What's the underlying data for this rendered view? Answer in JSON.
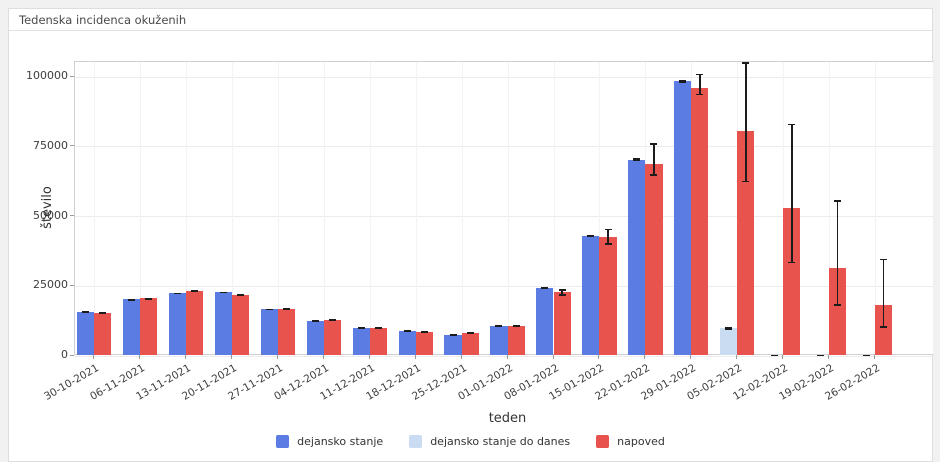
{
  "window": {
    "title": "Tedenska incidenca okuženih"
  },
  "chart_data": {
    "type": "bar",
    "title": "Tedenska incidenca okuženih",
    "xlabel": "teden",
    "ylabel": "število",
    "ylim": [
      0,
      100000
    ],
    "yticks": [
      0,
      25000,
      50000,
      75000,
      100000
    ],
    "grid": true,
    "legend_position": "bottom",
    "categories": [
      "30-10-2021",
      "06-11-2021",
      "13-11-2021",
      "20-11-2021",
      "27-11-2021",
      "04-12-2021",
      "11-12-2021",
      "18-12-2021",
      "25-12-2021",
      "01-01-2022",
      "08-01-2022",
      "15-01-2022",
      "22-01-2022",
      "29-01-2022",
      "05-02-2022",
      "12-02-2022",
      "19-02-2022",
      "26-02-2022"
    ],
    "series": [
      {
        "name": "dejansko stanje",
        "color": "#5b7ce2",
        "values": [
          15700,
          20100,
          22300,
          22700,
          16600,
          12500,
          9900,
          8800,
          7400,
          10700,
          24300,
          43000,
          70300,
          98300,
          null,
          0,
          0,
          0
        ],
        "errors": [
          [
            15450,
            15950
          ],
          [
            19900,
            20350
          ],
          [
            22100,
            22550
          ],
          [
            22450,
            22900
          ],
          [
            16400,
            16850
          ],
          [
            12300,
            12700
          ],
          [
            9750,
            10100
          ],
          [
            8650,
            8950
          ],
          [
            7250,
            7550
          ],
          [
            10550,
            10900
          ],
          [
            24100,
            24550
          ],
          [
            42600,
            43400
          ],
          [
            69900,
            70800
          ],
          [
            97900,
            98700
          ],
          null,
          [
            0,
            350
          ],
          [
            0,
            350
          ],
          [
            0,
            350
          ]
        ]
      },
      {
        "name": "dejansko stanje do danes",
        "color": "#c9dcf2",
        "values": [
          null,
          null,
          null,
          null,
          null,
          null,
          null,
          null,
          null,
          null,
          null,
          null,
          null,
          null,
          9800,
          null,
          null,
          null
        ],
        "errors": [
          null,
          null,
          null,
          null,
          null,
          null,
          null,
          null,
          null,
          null,
          null,
          null,
          null,
          null,
          [
            9400,
            10150
          ],
          null,
          null,
          null
        ]
      },
      {
        "name": "napoved",
        "color": "#e8534e",
        "values": [
          15400,
          20500,
          23200,
          21700,
          16800,
          12700,
          9900,
          8600,
          8000,
          10600,
          22900,
          42400,
          68600,
          95800,
          80700,
          52900,
          31400,
          18200
        ],
        "errors": [
          [
            15150,
            15700
          ],
          [
            20200,
            20800
          ],
          [
            22950,
            23500
          ],
          [
            21400,
            22000
          ],
          [
            16500,
            17100
          ],
          [
            12450,
            12950
          ],
          [
            9700,
            10150
          ],
          [
            8350,
            8850
          ],
          [
            7750,
            8250
          ],
          [
            10250,
            10950
          ],
          [
            21700,
            23850
          ],
          [
            39900,
            45400
          ],
          [
            64700,
            76100
          ],
          [
            93500,
            101000
          ],
          [
            62300,
            105200
          ],
          [
            33200,
            83200
          ],
          [
            18000,
            55700
          ],
          [
            10200,
            34700
          ]
        ]
      }
    ]
  }
}
